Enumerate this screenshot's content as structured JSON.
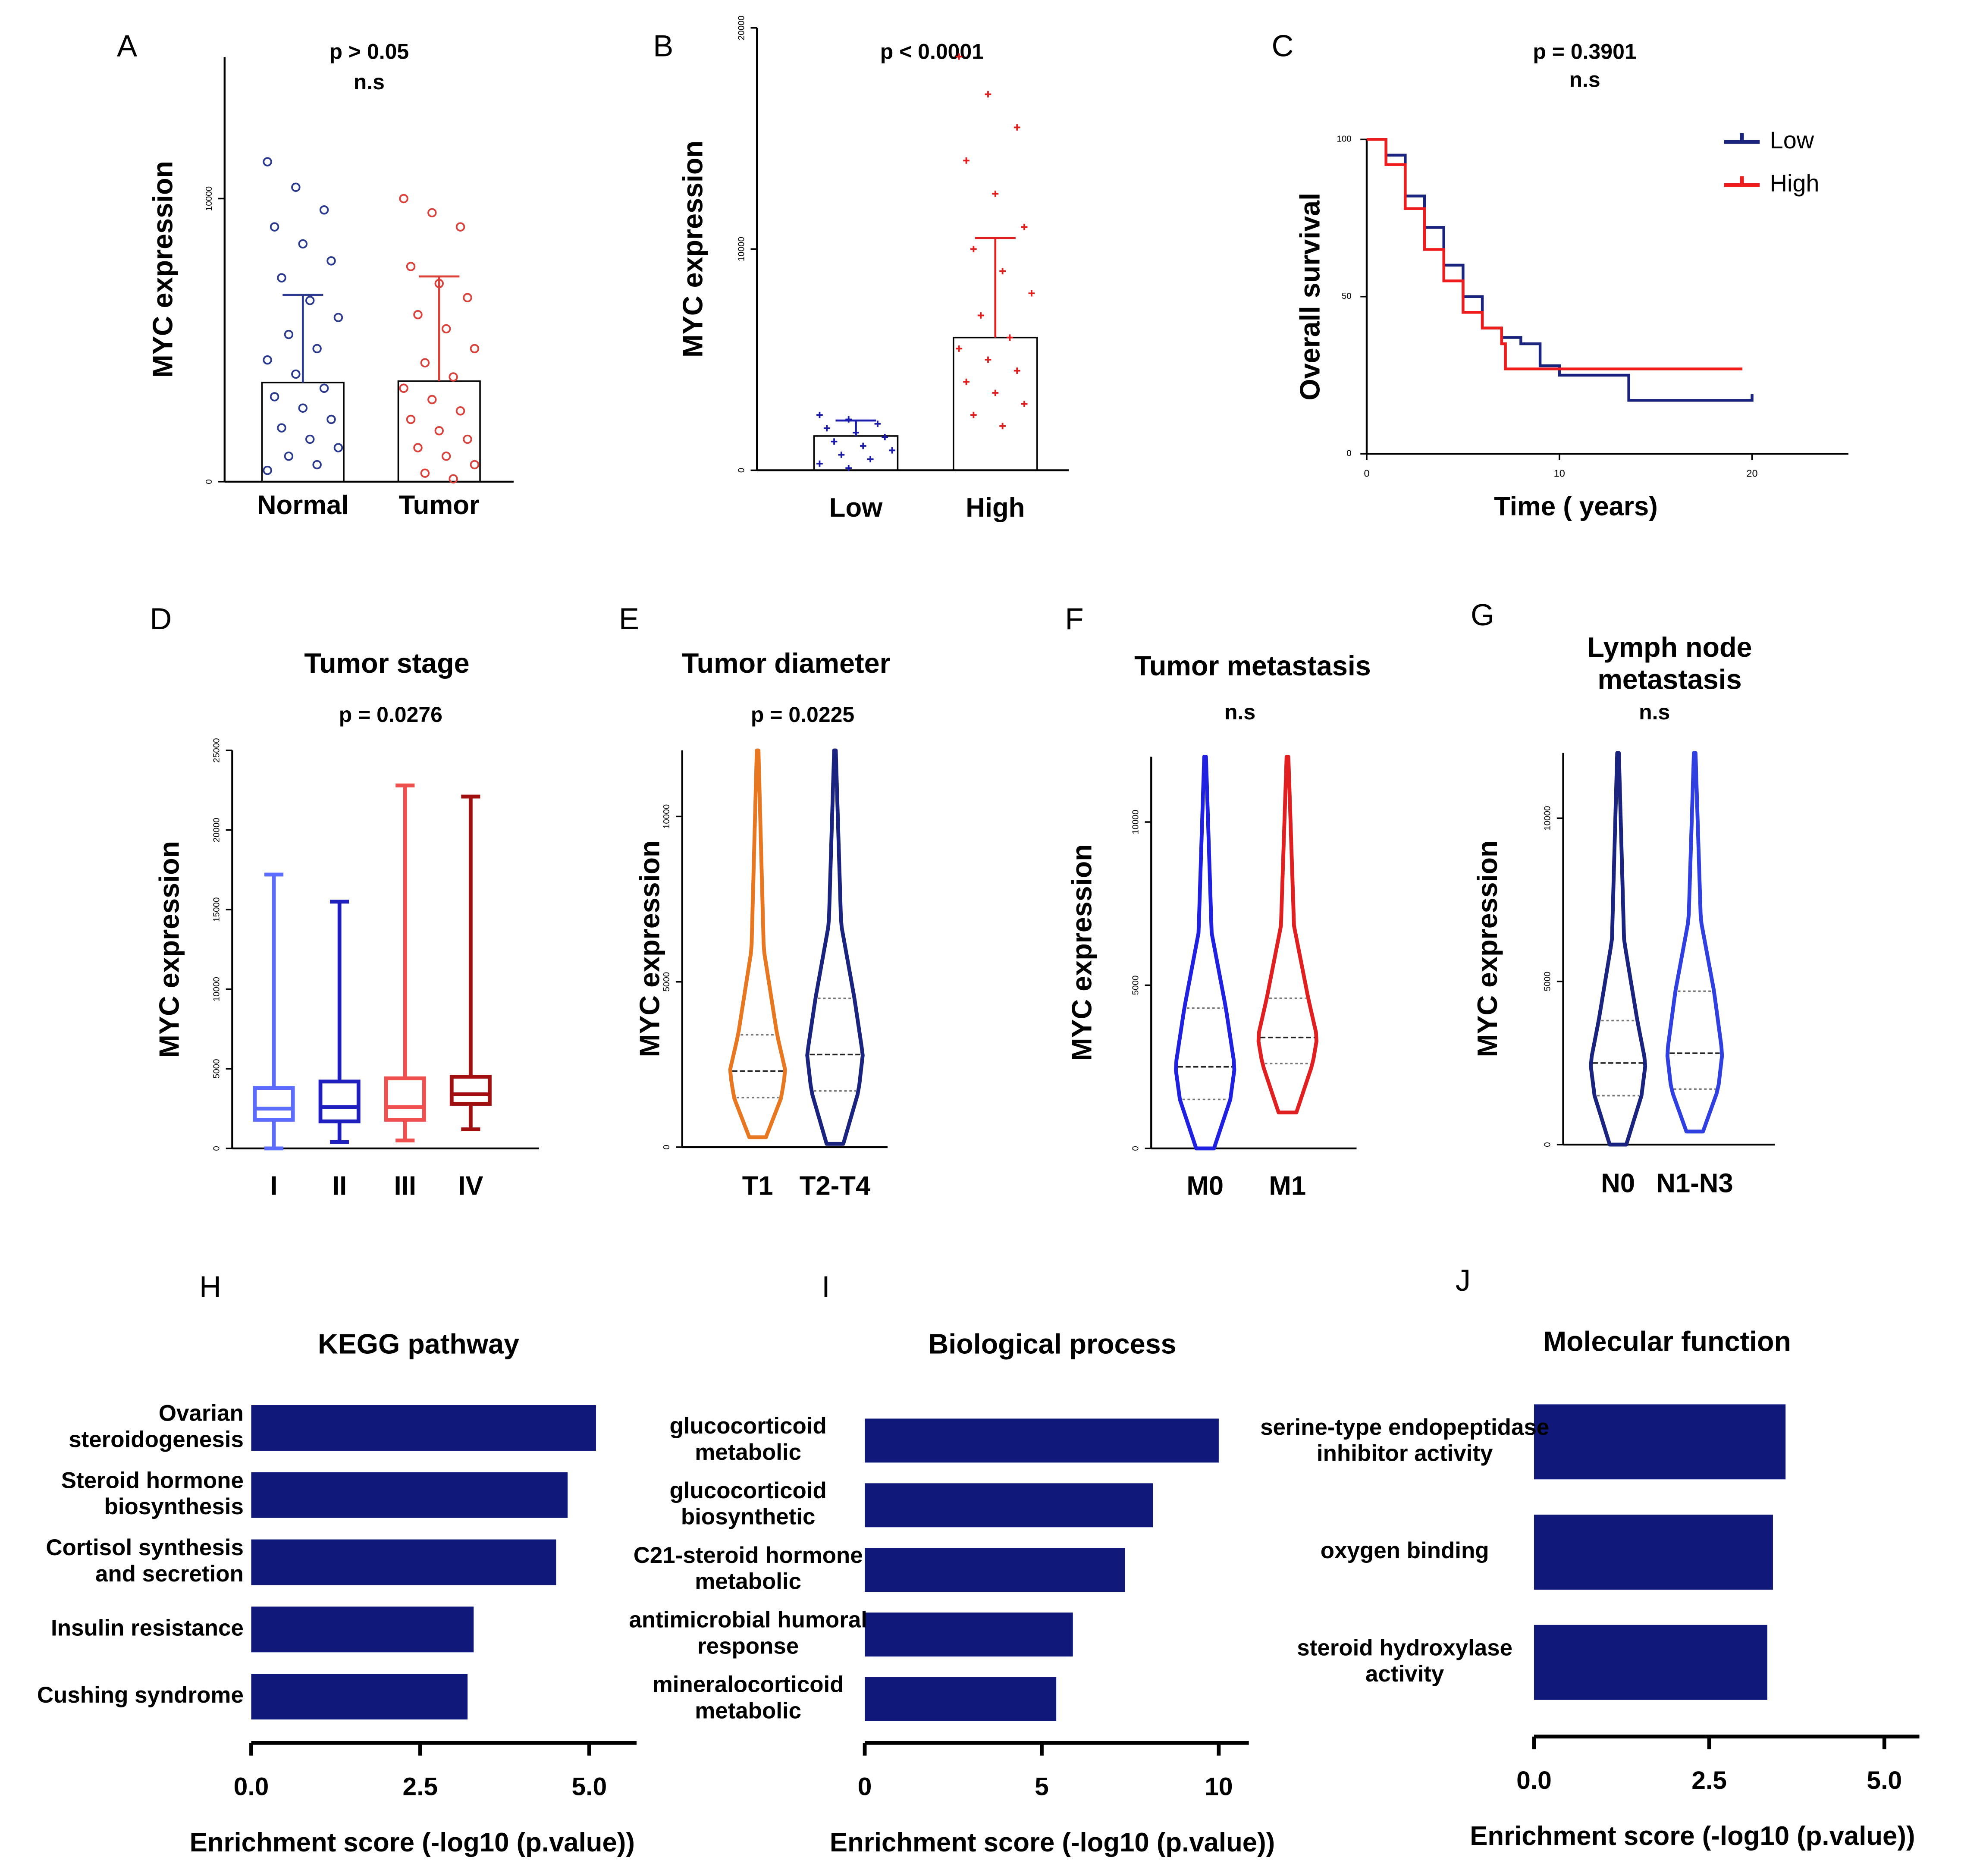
{
  "chart_data": [
    {
      "type": "bar",
      "panel": "A",
      "annotations": [
        "p > 0.05",
        "n.s"
      ],
      "ylabel": "MYC expression",
      "categories": [
        "Normal",
        "Tumor"
      ],
      "values": [
        3500,
        3550
      ],
      "errors": [
        3100,
        3700
      ],
      "colors": [
        "#2b3a8f",
        "#d9413a"
      ],
      "marker": "open-circle",
      "points": [
        [
          11300,
          10400,
          9600,
          9000,
          8400,
          7800,
          7200,
          6400,
          5800,
          5200,
          4700,
          4300,
          3800,
          3300,
          3000,
          2600,
          2200,
          1900,
          1500,
          1200,
          900,
          600,
          400
        ],
        [
          10000,
          9500,
          9000,
          7600,
          7000,
          6500,
          5900,
          5400,
          4700,
          4200,
          3700,
          3300,
          2900,
          2500,
          2200,
          1800,
          1500,
          1200,
          900,
          600,
          300,
          100
        ]
      ],
      "ylim": [
        0,
        15000
      ],
      "yticks": [
        0,
        10000
      ]
    },
    {
      "type": "bar",
      "panel": "B",
      "annotations": [
        "p < 0.0001"
      ],
      "ylabel": "MYC expression",
      "categories": [
        "Low",
        "High"
      ],
      "values": [
        1550,
        6000
      ],
      "errors": [
        700,
        4500
      ],
      "colors": [
        "#1a1aaa",
        "#e01e1e"
      ],
      "marker": "cross",
      "points": [
        [
          2500,
          2300,
          2100,
          1900,
          1700,
          1500,
          1300,
          1100,
          900,
          700,
          500,
          300,
          100
        ],
        [
          18700,
          17000,
          15500,
          14000,
          12500,
          11000,
          10000,
          9000,
          8000,
          7000,
          6000,
          5500,
          5000,
          4500,
          4000,
          3500,
          3000,
          2500,
          2000
        ]
      ],
      "ylim": [
        0,
        20000
      ],
      "yticks": [
        0,
        10000,
        20000
      ]
    },
    {
      "type": "line",
      "panel": "C",
      "annotations": [
        "p = 0.3901",
        "n.s"
      ],
      "ylabel": "Overall survival",
      "xlabel": "Time ( years)",
      "step": true,
      "legend": "upper right",
      "series": [
        {
          "name": "Low",
          "color": "#1a237e",
          "x": [
            0,
            1,
            2,
            3,
            4,
            5,
            6,
            7,
            8,
            9,
            10,
            13.6,
            20
          ],
          "values": [
            100,
            95,
            82,
            72,
            60,
            50,
            40,
            37,
            35,
            28,
            25,
            17,
            19
          ]
        },
        {
          "name": "High",
          "color": "#ee1c1c",
          "x": [
            0,
            1,
            2,
            3,
            4,
            5,
            6,
            7,
            7.2,
            19.5
          ],
          "values": [
            100,
            92,
            78,
            65,
            55,
            45,
            40,
            35,
            27,
            27
          ]
        }
      ],
      "xlim": [
        0,
        25
      ],
      "xticks": [
        0,
        10,
        20
      ],
      "ylim": [
        0,
        100
      ],
      "yticks": [
        0,
        50,
        100
      ]
    },
    {
      "type": "box",
      "panel": "D",
      "title": "Tumor stage",
      "annotations": [
        "p = 0.0276"
      ],
      "ylabel": "MYC expression",
      "categories": [
        "I",
        "II",
        "III",
        "IV"
      ],
      "colors": [
        "#5b6cff",
        "#1f1fbf",
        "#f05050",
        "#a01010"
      ],
      "min": [
        0,
        400,
        500,
        1200
      ],
      "q1": [
        1800,
        1700,
        1800,
        2800
      ],
      "median": [
        2500,
        2600,
        2600,
        3400
      ],
      "q3": [
        3800,
        4200,
        4400,
        4500
      ],
      "max": [
        17200,
        15500,
        22800,
        22100
      ],
      "ylim": [
        0,
        25000
      ],
      "yticks": [
        0,
        5000,
        10000,
        15000,
        20000,
        25000
      ]
    },
    {
      "type": "violin",
      "panel": "E",
      "title": "Tumor diameter",
      "annotations": [
        "p = 0.0225"
      ],
      "ylabel": "MYC expression",
      "categories": [
        "T1",
        "T2-T4"
      ],
      "colors": [
        "#e87722",
        "#1a237e"
      ],
      "min": [
        300,
        100
      ],
      "q1": [
        1500,
        1700
      ],
      "median": [
        2300,
        2800
      ],
      "q3": [
        3400,
        4500
      ],
      "max": [
        12000,
        12000
      ],
      "ylim": [
        0,
        12000
      ],
      "yticks": [
        0,
        5000,
        10000
      ]
    },
    {
      "type": "violin",
      "panel": "F",
      "title": "Tumor metastasis",
      "annotations": [
        "n.s"
      ],
      "ylabel": "MYC expression",
      "categories": [
        "M0",
        "M1"
      ],
      "colors": [
        "#2020e0",
        "#e02020"
      ],
      "min": [
        0,
        1100
      ],
      "q1": [
        1500,
        2600
      ],
      "median": [
        2500,
        3400
      ],
      "q3": [
        4300,
        4600
      ],
      "max": [
        12000,
        12000
      ],
      "ylim": [
        0,
        12000
      ],
      "yticks": [
        0,
        5000,
        10000
      ]
    },
    {
      "type": "violin",
      "panel": "G",
      "title": "Lymph node\nmetastasis",
      "annotations": [
        "n.s"
      ],
      "ylabel": "MYC expression",
      "categories": [
        "N0",
        "N1-N3"
      ],
      "colors": [
        "#1a237e",
        "#2f3fe0"
      ],
      "min": [
        0,
        400
      ],
      "q1": [
        1500,
        1700
      ],
      "median": [
        2500,
        2800
      ],
      "q3": [
        3800,
        4700
      ],
      "max": [
        12000,
        12000
      ],
      "ylim": [
        0,
        12000
      ],
      "yticks": [
        0,
        5000,
        10000
      ]
    },
    {
      "type": "barh",
      "panel": "H",
      "title": "KEGG pathway",
      "xlabel": "Enrichment score (-log10 (p.value))",
      "categories": [
        "Ovarian\nsteroidogenesis",
        "Steroid hormone\nbiosynthesis",
        "Cortisol synthesis\nand secretion",
        "Insulin resistance",
        "Cushing syndrome"
      ],
      "values": [
        5.1,
        4.68,
        4.51,
        3.29,
        3.2
      ],
      "color": "#10187a",
      "xlim": [
        0,
        5.7
      ],
      "xticks": [
        {
          "value": 0,
          "label": "0.0"
        },
        2.5,
        {
          "value": 5,
          "label": "5.0"
        }
      ]
    },
    {
      "type": "barh",
      "panel": "I",
      "title": "Biological process",
      "xlabel": "Enrichment score (-log10 (p.value))",
      "categories": [
        "glucocorticoid\nmetabolic",
        "glucocorticoid\nbiosynthetic",
        "C21-steroid hormone\nmetabolic",
        "antimicrobial humoral\nresponse",
        "mineralocorticoid\nmetabolic"
      ],
      "values": [
        10,
        8.14,
        7.35,
        5.88,
        5.41
      ],
      "color": "#10187a",
      "xlim": [
        0,
        10.85
      ],
      "xticks": [
        0,
        5,
        10
      ]
    },
    {
      "type": "barh",
      "panel": "J",
      "title": "Molecular function",
      "xlabel": "Enrichment score (-log10 (p.value))",
      "categories": [
        "serine-type endopeptidase\ninhibitor activity",
        "oxygen binding",
        "steroid hydroxylase\nactivity"
      ],
      "values": [
        3.59,
        3.41,
        3.33
      ],
      "color": "#10187a",
      "xlim": [
        0,
        5.5
      ],
      "xticks": [
        {
          "value": 0,
          "label": "0.0"
        },
        2.5,
        {
          "value": 5,
          "label": "5.0"
        }
      ]
    }
  ]
}
